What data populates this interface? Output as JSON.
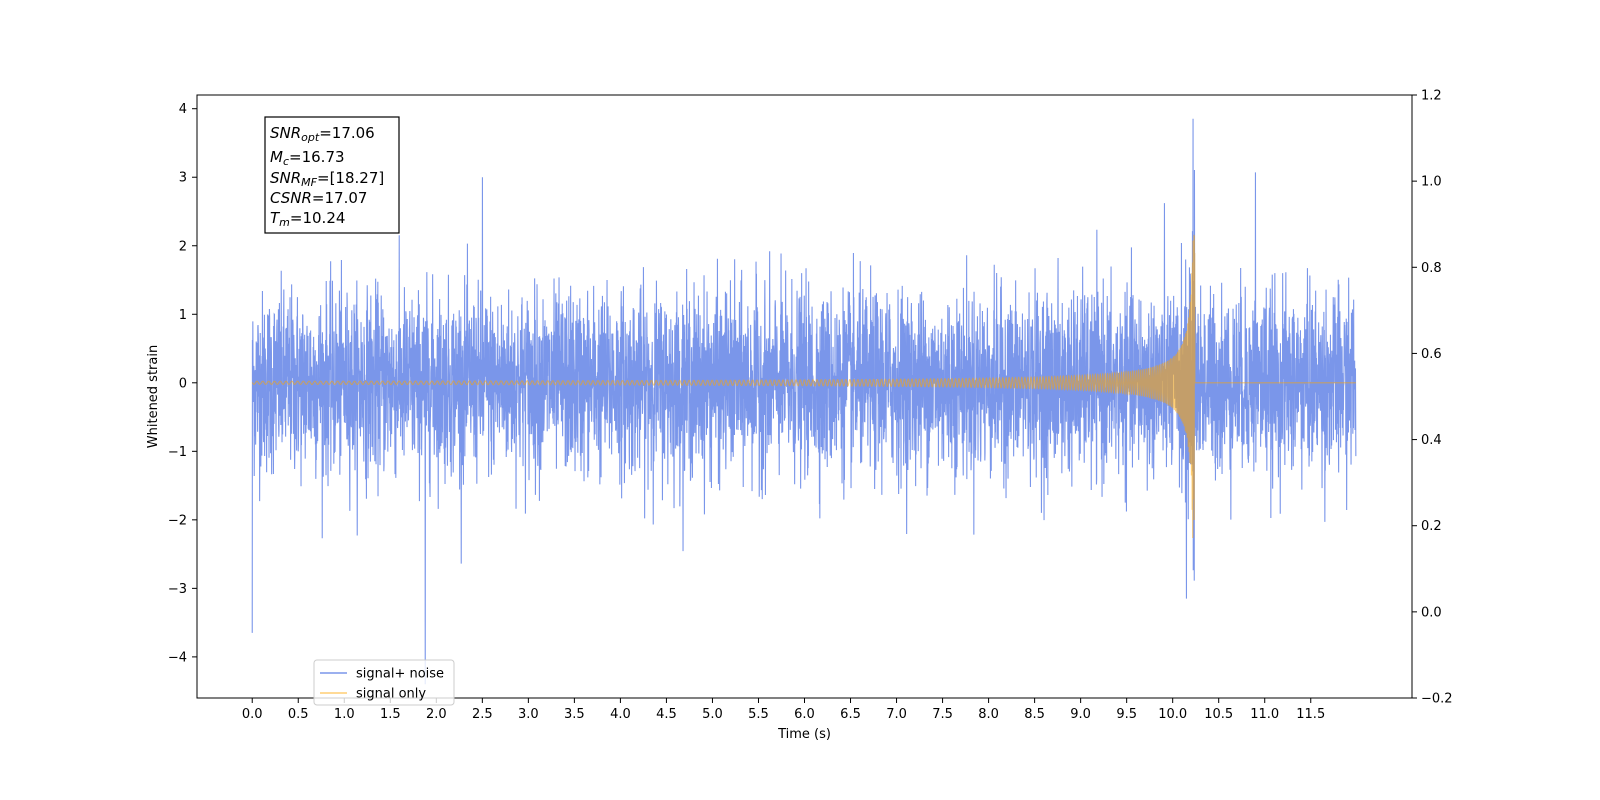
{
  "chart_data": {
    "type": "line",
    "xlabel": "Time (s)",
    "ylabel": "Whitened strain",
    "xlim": [
      -0.6,
      12.6
    ],
    "ylim": [
      -4.6,
      4.2
    ],
    "y2lim": [
      -0.2,
      1.2
    ],
    "x_ticks": [
      0.0,
      0.5,
      1.0,
      1.5,
      2.0,
      2.5,
      3.0,
      3.5,
      4.0,
      4.5,
      5.0,
      5.5,
      6.0,
      6.5,
      7.0,
      7.5,
      8.0,
      8.5,
      9.0,
      9.5,
      10.0,
      10.5,
      11.0,
      11.5
    ],
    "x_tick_labels": [
      "0.0",
      "0.5",
      "1.0",
      "1.5",
      "2.0",
      "2.5",
      "3.0",
      "3.5",
      "4.0",
      "4.5",
      "5.0",
      "5.5",
      "6.0",
      "6.5",
      "7.0",
      "7.5",
      "8.0",
      "8.5",
      "9.0",
      "9.5",
      "10.0",
      "10.5",
      "11.0",
      "11.5"
    ],
    "y_ticks": [
      -4,
      -3,
      -2,
      -1,
      0,
      1,
      2,
      3,
      4
    ],
    "y_tick_labels": [
      "−4",
      "−3",
      "−2",
      "−1",
      "0",
      "1",
      "2",
      "3",
      "4"
    ],
    "y2_ticks": [
      -0.2,
      0.0,
      0.2,
      0.4,
      0.6,
      0.8,
      1.0,
      1.2
    ],
    "y2_tick_labels": [
      "−0.2",
      "0.0",
      "0.2",
      "0.4",
      "0.6",
      "0.8",
      "1.0",
      "1.2"
    ],
    "grid": false,
    "legend_position": "lower-left",
    "series": [
      {
        "name": "signal+ noise",
        "color": "#4169e1",
        "opacity": 0.7,
        "x_range": [
          0.0,
          11.99
        ],
        "noise_sigma": 0.65,
        "extreme_points": [
          {
            "x": 0.0,
            "y": -3.65
          },
          {
            "x": 1.88,
            "y": -4.4
          },
          {
            "x": 2.5,
            "y": 3.0
          },
          {
            "x": 10.15,
            "y": -3.15
          },
          {
            "x": 10.9,
            "y": 3.07
          }
        ]
      },
      {
        "name": "signal only",
        "color": "#ffa500",
        "opacity": 0.55,
        "merger_time": 10.24,
        "x_range": [
          0.0,
          11.99
        ],
        "peak_amplitude": 2.3
      }
    ],
    "annotations": [
      {
        "base": "SNR",
        "sub": "opt",
        "text": "=17.06"
      },
      {
        "base": "M",
        "sub": "c",
        "text": "=16.73"
      },
      {
        "base": "SNR",
        "sub": "MF",
        "text": "=[18.27]"
      },
      {
        "base": "CSNR",
        "sub": "",
        "text": "=17.07"
      },
      {
        "base": "T",
        "sub": "m",
        "text": "=10.24"
      }
    ]
  }
}
